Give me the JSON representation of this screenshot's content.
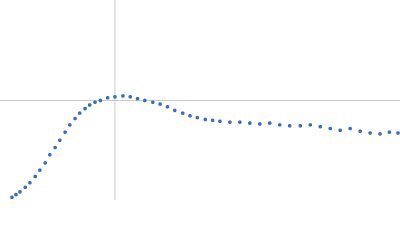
{
  "chart_data": {
    "type": "scatter",
    "x": [
      0.18,
      0.24,
      0.3,
      0.38,
      0.45,
      0.53,
      0.6,
      0.68,
      0.75,
      0.83,
      0.9,
      0.98,
      1.05,
      1.13,
      1.2,
      1.28,
      1.35,
      1.43,
      1.51,
      1.62,
      1.73,
      1.85,
      1.96,
      2.07,
      2.18,
      2.3,
      2.41,
      2.52,
      2.63,
      2.75,
      2.86,
      2.97,
      3.09,
      3.2,
      3.31,
      3.46,
      3.61,
      3.76,
      3.91,
      4.06,
      4.21,
      4.36,
      4.52,
      4.67,
      4.82,
      4.97,
      5.12,
      5.27,
      5.42,
      5.57,
      5.72,
      5.86,
      5.99
    ],
    "values": [
      0.03,
      0.06,
      0.09,
      0.14,
      0.19,
      0.26,
      0.33,
      0.41,
      0.5,
      0.58,
      0.66,
      0.75,
      0.83,
      0.9,
      0.96,
      1.01,
      1.05,
      1.08,
      1.1,
      1.13,
      1.14,
      1.15,
      1.14,
      1.12,
      1.1,
      1.08,
      1.06,
      1.03,
      0.99,
      0.96,
      0.93,
      0.91,
      0.89,
      0.88,
      0.87,
      0.86,
      0.86,
      0.85,
      0.84,
      0.85,
      0.83,
      0.82,
      0.82,
      0.83,
      0.81,
      0.79,
      0.77,
      0.79,
      0.76,
      0.74,
      0.73,
      0.75,
      0.74
    ],
    "color": "#3a6bbf",
    "xlim": [
      0,
      6.02
    ],
    "ylim": [
      0,
      2.21
    ],
    "reference_x": 1.73,
    "reference_y": 1.1
  }
}
